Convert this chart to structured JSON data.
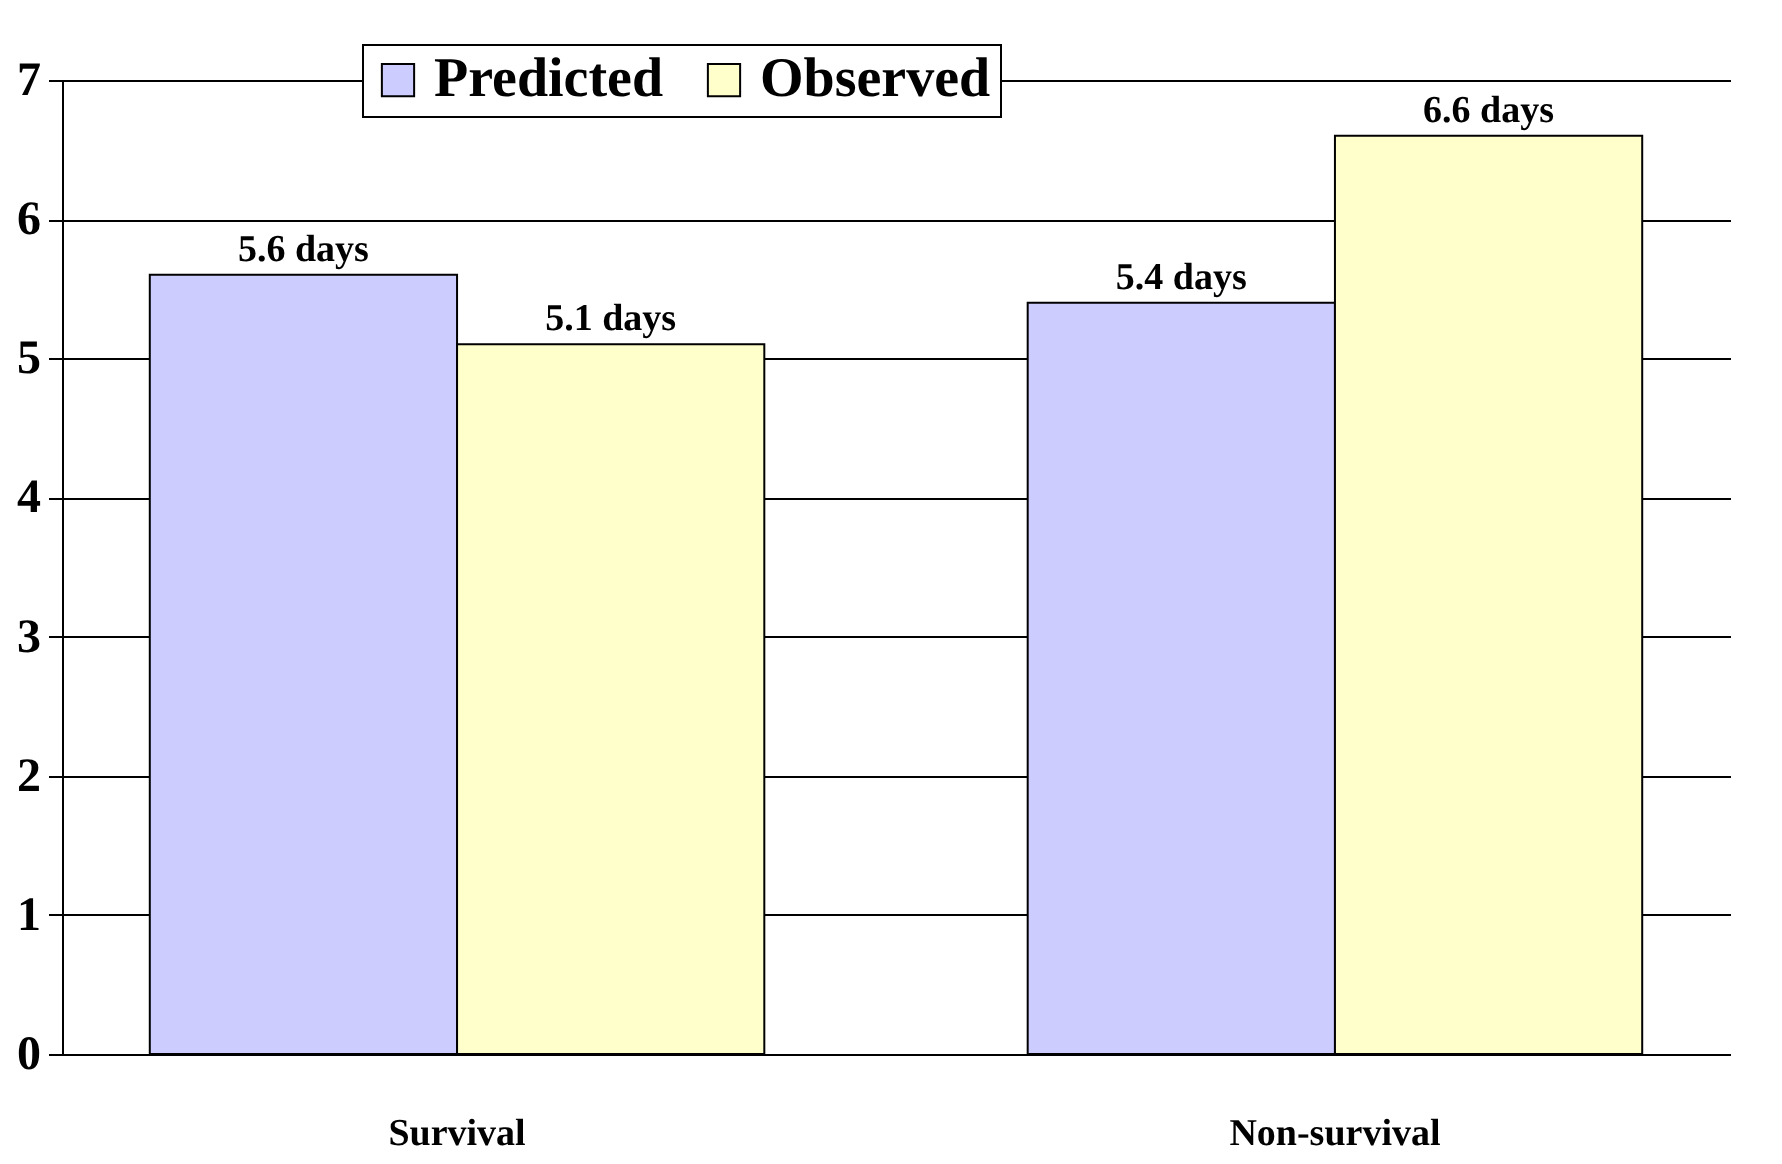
{
  "chart_data": {
    "type": "bar",
    "categories": [
      "Survival",
      "Non-survival"
    ],
    "series": [
      {
        "name": "Predicted",
        "color": "#ccccff",
        "values": [
          5.6,
          5.4
        ],
        "value_labels": [
          "5.6 days",
          "5.4 days"
        ]
      },
      {
        "name": "Observed",
        "color": "#ffffcc",
        "values": [
          5.1,
          6.6
        ],
        "value_labels": [
          "5.1 days",
          "6.6 days"
        ]
      }
    ],
    "ylim": [
      0,
      7
    ],
    "yticks": [
      0,
      1,
      2,
      3,
      4,
      5,
      6,
      7
    ],
    "grid": "y",
    "legend": "top"
  }
}
